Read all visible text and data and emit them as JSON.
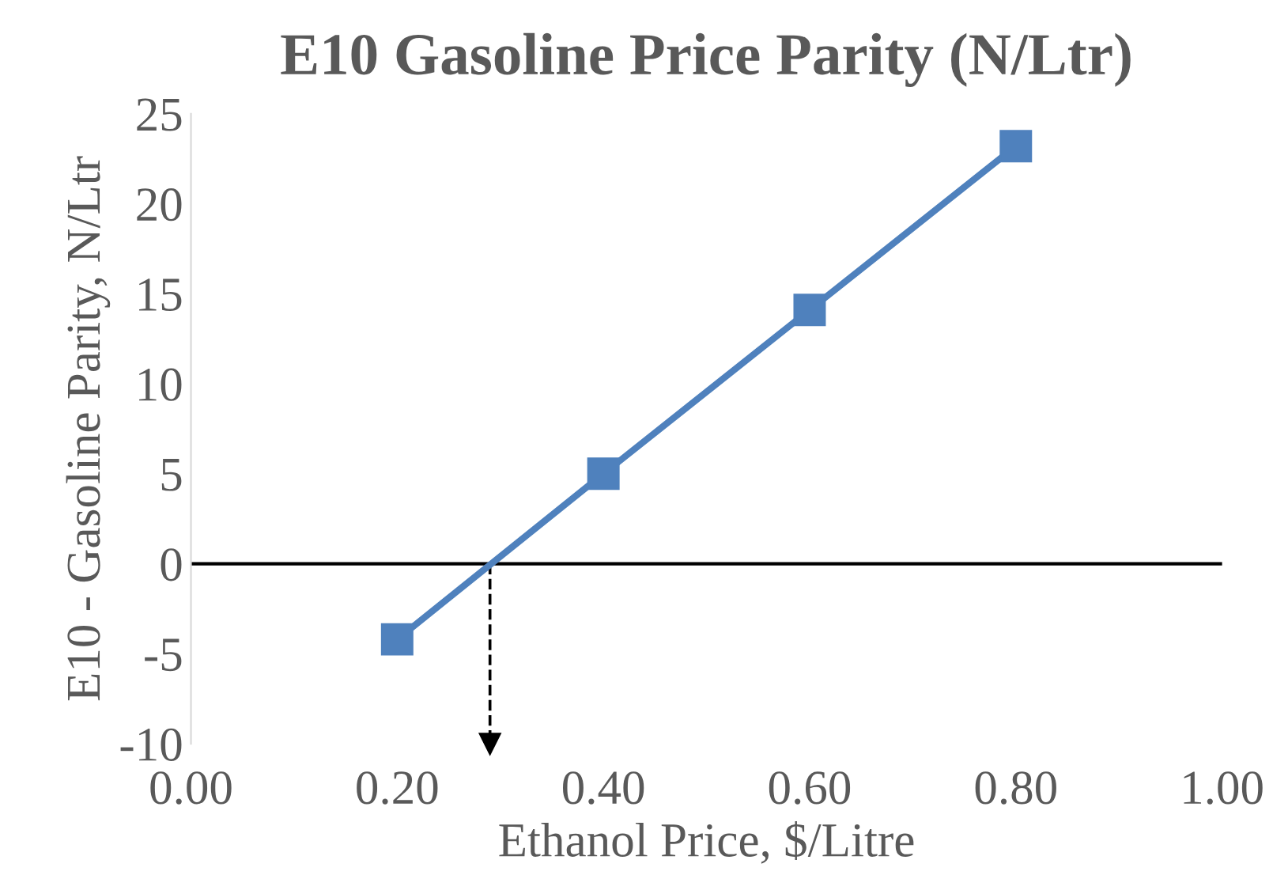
{
  "chart_data": {
    "type": "line",
    "title": "E10 Gasoline Price Parity (N/Ltr)",
    "xlabel": "Ethanol Price, $/Litre",
    "ylabel": "E10 - Gasoline Parity, N/Ltr",
    "x": [
      0.2,
      0.4,
      0.6,
      0.8
    ],
    "series": [
      {
        "color": "#4f81bd",
        "values": [
          -4.2,
          5.0,
          14.1,
          23.2
        ]
      }
    ],
    "marker": "square",
    "line_style": "solid",
    "grid": false,
    "legend": false,
    "xlim": [
      0,
      1
    ],
    "xticks": [
      {
        "value": 0,
        "label": "0.00"
      },
      {
        "value": 0.2,
        "label": "0.20"
      },
      {
        "value": 0.4,
        "label": "0.40"
      },
      {
        "value": 0.6,
        "label": "0.60"
      },
      {
        "value": 0.8,
        "label": "0.80"
      },
      {
        "value": 1,
        "label": "1.00"
      }
    ],
    "ylim": [
      -10,
      25
    ],
    "yticks": [
      -10,
      -5,
      0,
      5,
      10,
      15,
      20,
      25
    ],
    "ref_lines": [
      {
        "axis": "y",
        "value": 0,
        "color": "#000000",
        "line_style": "solid"
      },
      {
        "axis": "x",
        "value": 0.29,
        "color": "#000000",
        "line_style": "dashed"
      }
    ]
  }
}
